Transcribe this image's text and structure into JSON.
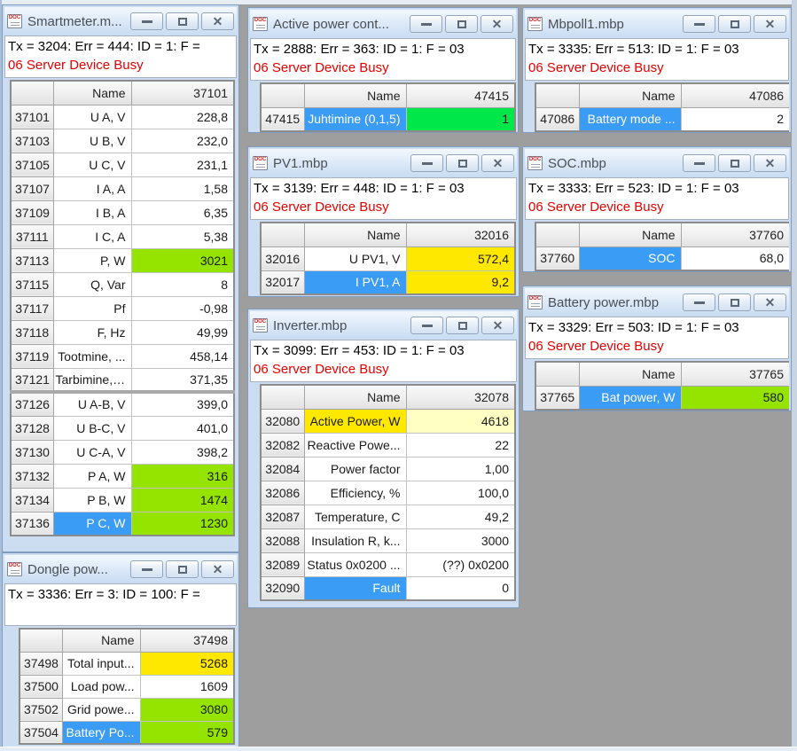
{
  "colors": {
    "power_green": "#94E400",
    "control_green": "#00E74A",
    "alert_yellow": "#FFE800",
    "pale_yellow": "#FFFFC4",
    "selection_blue": "#3B9CF6",
    "error_red": "#E30000"
  },
  "windows": [
    {
      "id": "smartmeter",
      "title": "Smartmeter.m...",
      "status": "Tx = 3204: Err = 444: ID = 1: F =",
      "error": "06 Server Device Busy",
      "columns": {
        "name_header": "Name",
        "value_header": "37101"
      },
      "rows": [
        {
          "addr": "37101",
          "name": "U A, V",
          "value": "228,8",
          "name_bg": null,
          "value_bg": null
        },
        {
          "addr": "37103",
          "name": "U B, V",
          "value": "232,0",
          "name_bg": null,
          "value_bg": null
        },
        {
          "addr": "37105",
          "name": "U C, V",
          "value": "231,1",
          "name_bg": null,
          "value_bg": null
        },
        {
          "addr": "37107",
          "name": "I A, A",
          "value": "1,58",
          "name_bg": null,
          "value_bg": null
        },
        {
          "addr": "37109",
          "name": "I B, A",
          "value": "6,35",
          "name_bg": null,
          "value_bg": null
        },
        {
          "addr": "37111",
          "name": "I C, A",
          "value": "5,38",
          "name_bg": null,
          "value_bg": null
        },
        {
          "addr": "37113",
          "name": "P, W",
          "value": "3021",
          "name_bg": null,
          "value_bg": "green"
        },
        {
          "addr": "37115",
          "name": "Q, Var",
          "value": "8",
          "name_bg": null,
          "value_bg": null
        },
        {
          "addr": "37117",
          "name": "Pf",
          "value": "-0,98",
          "name_bg": null,
          "value_bg": null
        },
        {
          "addr": "37118",
          "name": "F, Hz",
          "value": "49,99",
          "name_bg": null,
          "value_bg": null
        },
        {
          "addr": "37119",
          "name": "Tootmine, ...",
          "value": "458,14",
          "name_bg": null,
          "value_bg": null
        },
        {
          "addr": "37121",
          "name": "Tarbimine, ...",
          "value": "371,35",
          "name_bg": null,
          "value_bg": null,
          "separator_after": true
        },
        {
          "addr": "37126",
          "name": "U A-B, V",
          "value": "399,0",
          "name_bg": null,
          "value_bg": null
        },
        {
          "addr": "37128",
          "name": "U B-C, V",
          "value": "401,0",
          "name_bg": null,
          "value_bg": null
        },
        {
          "addr": "37130",
          "name": "U C-A, V",
          "value": "398,2",
          "name_bg": null,
          "value_bg": null
        },
        {
          "addr": "37132",
          "name": "P A, W",
          "value": "316",
          "name_bg": null,
          "value_bg": "green"
        },
        {
          "addr": "37134",
          "name": "P B, W",
          "value": "1474",
          "name_bg": null,
          "value_bg": "green"
        },
        {
          "addr": "37136",
          "name": "P C, W",
          "value": "1230",
          "name_bg": "selected",
          "value_bg": "green"
        }
      ]
    },
    {
      "id": "active-power",
      "title": "Active power cont...",
      "status": "Tx = 2888: Err = 363: ID = 1: F = 03",
      "error": "06 Server Device Busy",
      "columns": {
        "name_header": "Name",
        "value_header": "47415"
      },
      "rows": [
        {
          "addr": "47415",
          "name": "Juhtimine (0,1,5)",
          "value": "1",
          "name_bg": "selected",
          "value_bg": "bright-green"
        }
      ]
    },
    {
      "id": "mbpoll1",
      "title": "Mbpoll1.mbp",
      "status": "Tx = 3335: Err = 513: ID = 1: F = 03",
      "error": "06 Server Device Busy",
      "columns": {
        "name_header": "Name",
        "value_header": "47086"
      },
      "rows": [
        {
          "addr": "47086",
          "name": "Battery mode ...",
          "value": "2",
          "name_bg": "selected",
          "value_bg": null
        }
      ]
    },
    {
      "id": "pv1",
      "title": "PV1.mbp",
      "status": "Tx = 3139: Err = 448: ID = 1: F = 03",
      "error": "06 Server Device Busy",
      "columns": {
        "name_header": "Name",
        "value_header": "32016"
      },
      "rows": [
        {
          "addr": "32016",
          "name": "U PV1, V",
          "value": "572,4",
          "name_bg": null,
          "value_bg": "yellow"
        },
        {
          "addr": "32017",
          "name": "I PV1, A",
          "value": "9,2",
          "name_bg": "selected",
          "value_bg": "yellow"
        }
      ]
    },
    {
      "id": "soc",
      "title": "SOC.mbp",
      "status": "Tx = 3333: Err = 523: ID = 1: F = 03",
      "error": "06 Server Device Busy",
      "columns": {
        "name_header": "Name",
        "value_header": "37760"
      },
      "rows": [
        {
          "addr": "37760",
          "name": "SOC",
          "value": "68,0",
          "name_bg": "selected",
          "value_bg": null
        }
      ]
    },
    {
      "id": "battery-power",
      "title": "Battery power.mbp",
      "status": "Tx = 3329: Err = 503: ID = 1: F = 03",
      "error": "06 Server Device Busy",
      "columns": {
        "name_header": "Name",
        "value_header": "37765"
      },
      "rows": [
        {
          "addr": "37765",
          "name": "Bat power, W",
          "value": "580",
          "name_bg": "selected",
          "value_bg": "green"
        }
      ]
    },
    {
      "id": "inverter",
      "title": "Inverter.mbp",
      "status": "Tx = 3099: Err = 453: ID = 1: F = 03",
      "error": "06 Server Device Busy",
      "columns": {
        "name_header": "Name",
        "value_header": "32078"
      },
      "rows": [
        {
          "addr": "32080",
          "name": "Active Power, W",
          "value": "4618",
          "name_bg": "yellow",
          "value_bg": "pale-yellow"
        },
        {
          "addr": "32082",
          "name": "Reactive Powe...",
          "value": "22",
          "name_bg": null,
          "value_bg": null
        },
        {
          "addr": "32084",
          "name": "Power factor",
          "value": "1,00",
          "name_bg": null,
          "value_bg": null
        },
        {
          "addr": "32086",
          "name": "Efficiency, %",
          "value": "100,0",
          "name_bg": null,
          "value_bg": null
        },
        {
          "addr": "32087",
          "name": "Temperature, C",
          "value": "49,2",
          "name_bg": null,
          "value_bg": null
        },
        {
          "addr": "32088",
          "name": "Insulation R, k...",
          "value": "3000",
          "name_bg": null,
          "value_bg": null
        },
        {
          "addr": "32089",
          "name": "Status 0x0200 ...",
          "value": "(??) 0x0200",
          "name_bg": null,
          "value_bg": null
        },
        {
          "addr": "32090",
          "name": "Fault",
          "value": "0",
          "name_bg": "selected",
          "value_bg": null
        }
      ]
    },
    {
      "id": "dongle-power",
      "title": "Dongle pow...",
      "status": "Tx = 3336: Err = 3: ID = 100: F =",
      "error": "",
      "columns": {
        "name_header": "Name",
        "value_header": "37498"
      },
      "rows": [
        {
          "addr": "37498",
          "name": "Total input...",
          "value": "5268",
          "name_bg": null,
          "value_bg": "yellow"
        },
        {
          "addr": "37500",
          "name": "Load pow...",
          "value": "1609",
          "name_bg": null,
          "value_bg": null
        },
        {
          "addr": "37502",
          "name": "Grid powe...",
          "value": "3080",
          "name_bg": null,
          "value_bg": "green"
        },
        {
          "addr": "37504",
          "name": "Battery Po...",
          "value": "579",
          "name_bg": "selected",
          "value_bg": "green"
        }
      ]
    }
  ]
}
